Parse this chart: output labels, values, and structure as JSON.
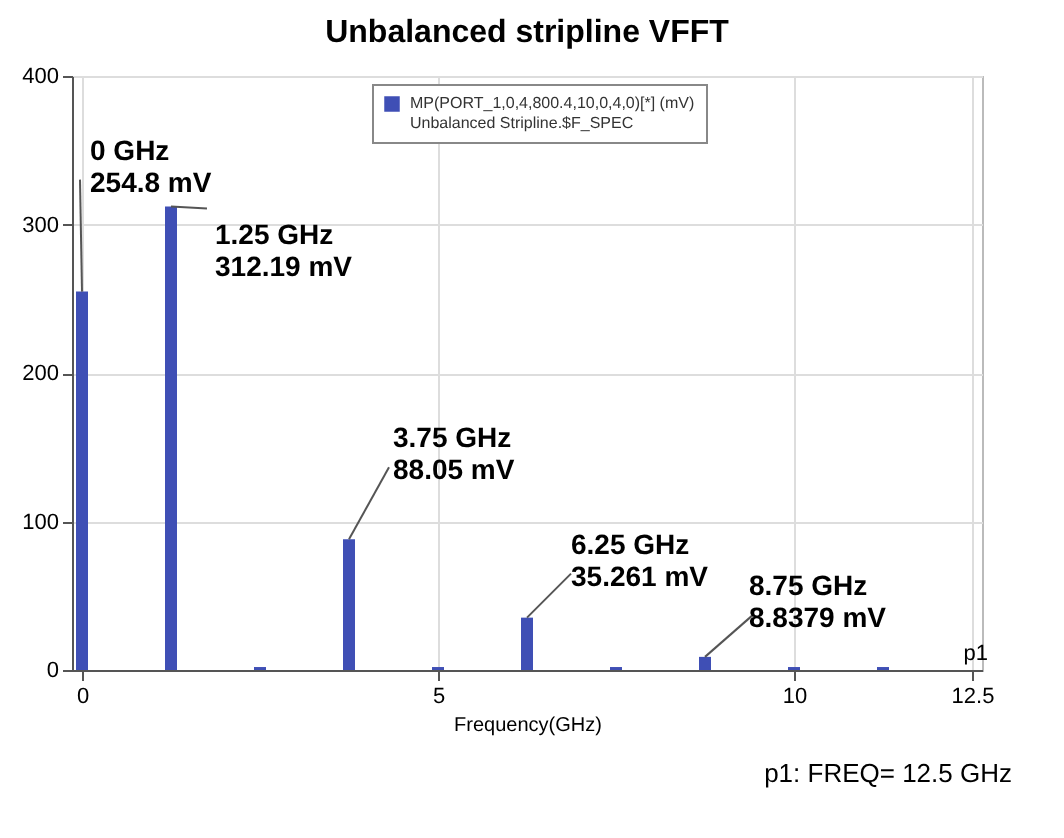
{
  "chart_data": {
    "type": "bar",
    "title": "Unbalanced stripline VFFT",
    "xlabel": "Frequency(GHz)",
    "x": [
      0,
      1.25,
      2.5,
      3.75,
      5,
      6.25,
      7.5,
      8.75,
      10,
      11.25
    ],
    "series": [
      {
        "name": "MP(PORT_1,0,4,800.4,10,0,4,0)[*] (mV)\nUnbalanced Stripline.$F_SPEC",
        "color": "#3f4fb5",
        "values": [
          254.8,
          312.19,
          2,
          88.05,
          2,
          35.261,
          2,
          8.8379,
          2,
          2
        ]
      }
    ],
    "xlim": [
      0,
      12.5
    ],
    "xticks": [
      0,
      5,
      10,
      {
        "value": 12.5,
        "label": "12.5"
      }
    ],
    "ylim": [
      0,
      400
    ],
    "yticks": [
      0,
      100,
      200,
      300,
      400
    ],
    "grid": true,
    "legend": "top",
    "annotations": [
      {
        "text": "0 GHz\n254.8 mV",
        "x": 0,
        "y": 254.8
      },
      {
        "text": "1.25 GHz\n312.19 mV",
        "x": 1.25,
        "y": 312.19
      },
      {
        "text": "3.75 GHz\n88.05 mV",
        "x": 3.75,
        "y": 88.05
      },
      {
        "text": "6.25 GHz\n35.261 mV",
        "x": 6.25,
        "y": 35.261
      },
      {
        "text": "8.75 GHz\n8.8379 mV",
        "x": 8.75,
        "y": 8.8379
      },
      "p1",
      "p1: FREQ= 12.5 GHz"
    ]
  }
}
